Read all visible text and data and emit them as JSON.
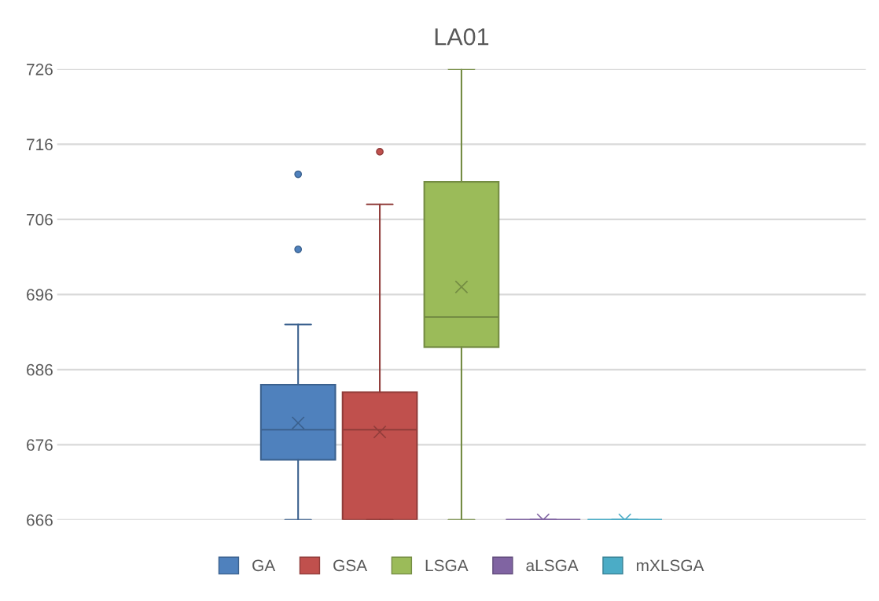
{
  "chart_data": {
    "type": "box",
    "title": "LA01",
    "categories": [
      null
    ],
    "ylim": [
      666,
      726
    ],
    "yticks": [
      666,
      676,
      686,
      696,
      706,
      716,
      726
    ],
    "grid": "y",
    "legend": "bottom",
    "tick_labels": "y",
    "marker": "cross",
    "series": [
      {
        "name": "GA",
        "color": "#4f81bd",
        "boxes": [
          {
            "low": 666,
            "q1": 674,
            "median": 678,
            "q3": 684,
            "high": 692,
            "mean": 678.9,
            "outliers": [
              702,
              712
            ]
          }
        ]
      },
      {
        "name": "GSA",
        "color": "#c0504d",
        "boxes": [
          {
            "low": 666,
            "q1": 666,
            "median": 678,
            "q3": 683,
            "high": 708,
            "mean": 677.7,
            "outliers": [
              715
            ]
          }
        ]
      },
      {
        "name": "LSGA",
        "color": "#9bbb59",
        "boxes": [
          {
            "low": 666,
            "q1": 689,
            "median": 693,
            "q3": 711,
            "high": 726,
            "mean": 697
          }
        ]
      },
      {
        "name": "aLSGA",
        "color": "#8064a2",
        "boxes": [
          {
            "low": 666,
            "q1": 666,
            "median": 666,
            "q3": 666,
            "high": 666,
            "mean": 666
          }
        ]
      },
      {
        "name": "mXLSGA",
        "color": "#4bacc6",
        "boxes": [
          {
            "low": 666,
            "q1": 666,
            "median": 666,
            "q3": 666,
            "high": 666,
            "mean": 666
          }
        ]
      }
    ]
  }
}
